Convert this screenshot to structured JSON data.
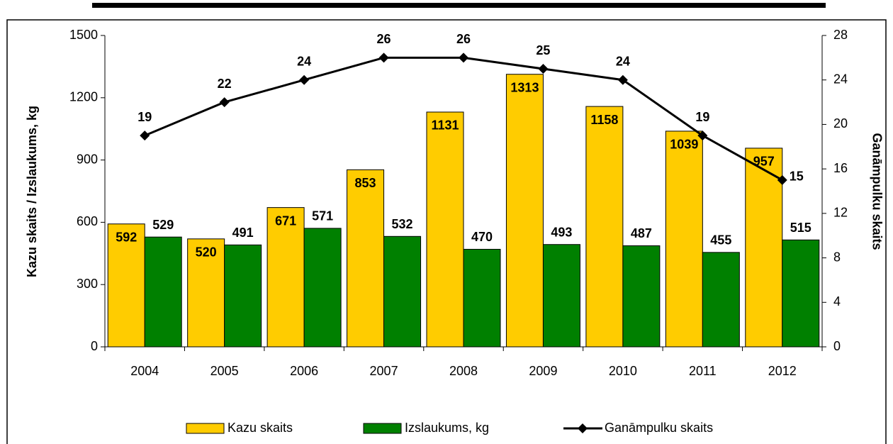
{
  "chart_data": {
    "type": "bar",
    "categories": [
      "2004",
      "2005",
      "2006",
      "2007",
      "2008",
      "2009",
      "2010",
      "2011",
      "2012"
    ],
    "series": [
      {
        "name": "Kazu skaits",
        "color": "#ffcc00",
        "values": [
          592,
          520,
          671,
          853,
          1131,
          1313,
          1158,
          1039,
          957
        ]
      },
      {
        "name": "Izslaukums, kg",
        "color": "#008000",
        "values": [
          529,
          491,
          571,
          532,
          470,
          493,
          487,
          455,
          515
        ]
      },
      {
        "name": "Ganāmpulku skaits",
        "color": "#000000",
        "type": "line",
        "axis": "y2",
        "values": [
          19,
          22,
          24,
          26,
          26,
          25,
          24,
          19,
          15
        ]
      }
    ],
    "ylabel": "Kazu skaits / Izslaukums, kg",
    "y2label": "Ganāmpulku skaits",
    "ylim": [
      0,
      1500
    ],
    "yticks": [
      0,
      300,
      600,
      900,
      1200,
      1500
    ],
    "y2lim": [
      0,
      28
    ],
    "y2ticks": [
      0,
      4,
      8,
      12,
      16,
      20,
      24,
      28
    ],
    "legend": "bottom"
  }
}
